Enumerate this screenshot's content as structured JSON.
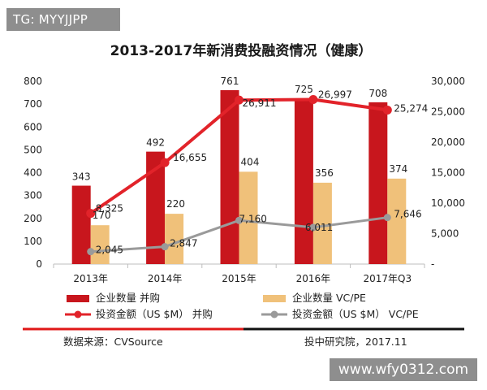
{
  "watermark_top": "TG: MYYJJPP",
  "watermark_bottom": "www.wfy0312.com",
  "source_left": "数据来源：CVSource",
  "source_right": "投中研究院，2017.11",
  "colors": {
    "ma_bar": "#c8161d",
    "vc_bar": "#f0c17a",
    "ma_line": "#e2232a",
    "vc_line": "#9a9a9a",
    "footer_red": "#e01818",
    "footer_black": "#111111"
  },
  "chart_data": {
    "type": "bar",
    "title": "2013-2017年新消费投融资情况（健康）",
    "categories": [
      "2013年",
      "2014年",
      "2015年",
      "2016年",
      "2017年Q3"
    ],
    "y_left": {
      "ylim": [
        0,
        800
      ],
      "ticks": [
        "0",
        "100",
        "200",
        "300",
        "400",
        "500",
        "600",
        "700",
        "800"
      ]
    },
    "y_right": {
      "ylim": [
        0,
        30000
      ],
      "ticks": [
        "-",
        "5,000",
        "10,000",
        "15,000",
        "20,000",
        "25,000",
        "30,000"
      ]
    },
    "series": [
      {
        "name": "企业数量 并购",
        "type": "bar",
        "axis": "left",
        "values": [
          343,
          492,
          761,
          725,
          708
        ],
        "labels": [
          "343",
          "492",
          "761",
          "725",
          "708"
        ]
      },
      {
        "name": "企业数量 VC/PE",
        "type": "bar",
        "axis": "left",
        "values": [
          170,
          220,
          404,
          356,
          374
        ],
        "labels": [
          "170",
          "220",
          "404",
          "356",
          "374"
        ]
      },
      {
        "name": "投资金额（US $M） 并购",
        "type": "line",
        "axis": "right",
        "values": [
          8325,
          16655,
          26911,
          26997,
          25274
        ],
        "labels": [
          "8,325",
          "16,655",
          "26,911",
          "26,997",
          "25,274"
        ]
      },
      {
        "name": "投资金额（US $M） VC/PE",
        "type": "line",
        "axis": "right",
        "values": [
          2045,
          2847,
          7160,
          6011,
          7646
        ],
        "labels": [
          "2,045",
          "2,847",
          "7,160",
          "6,011",
          "7,646"
        ]
      }
    ],
    "grid": false,
    "legend": "bottom"
  }
}
